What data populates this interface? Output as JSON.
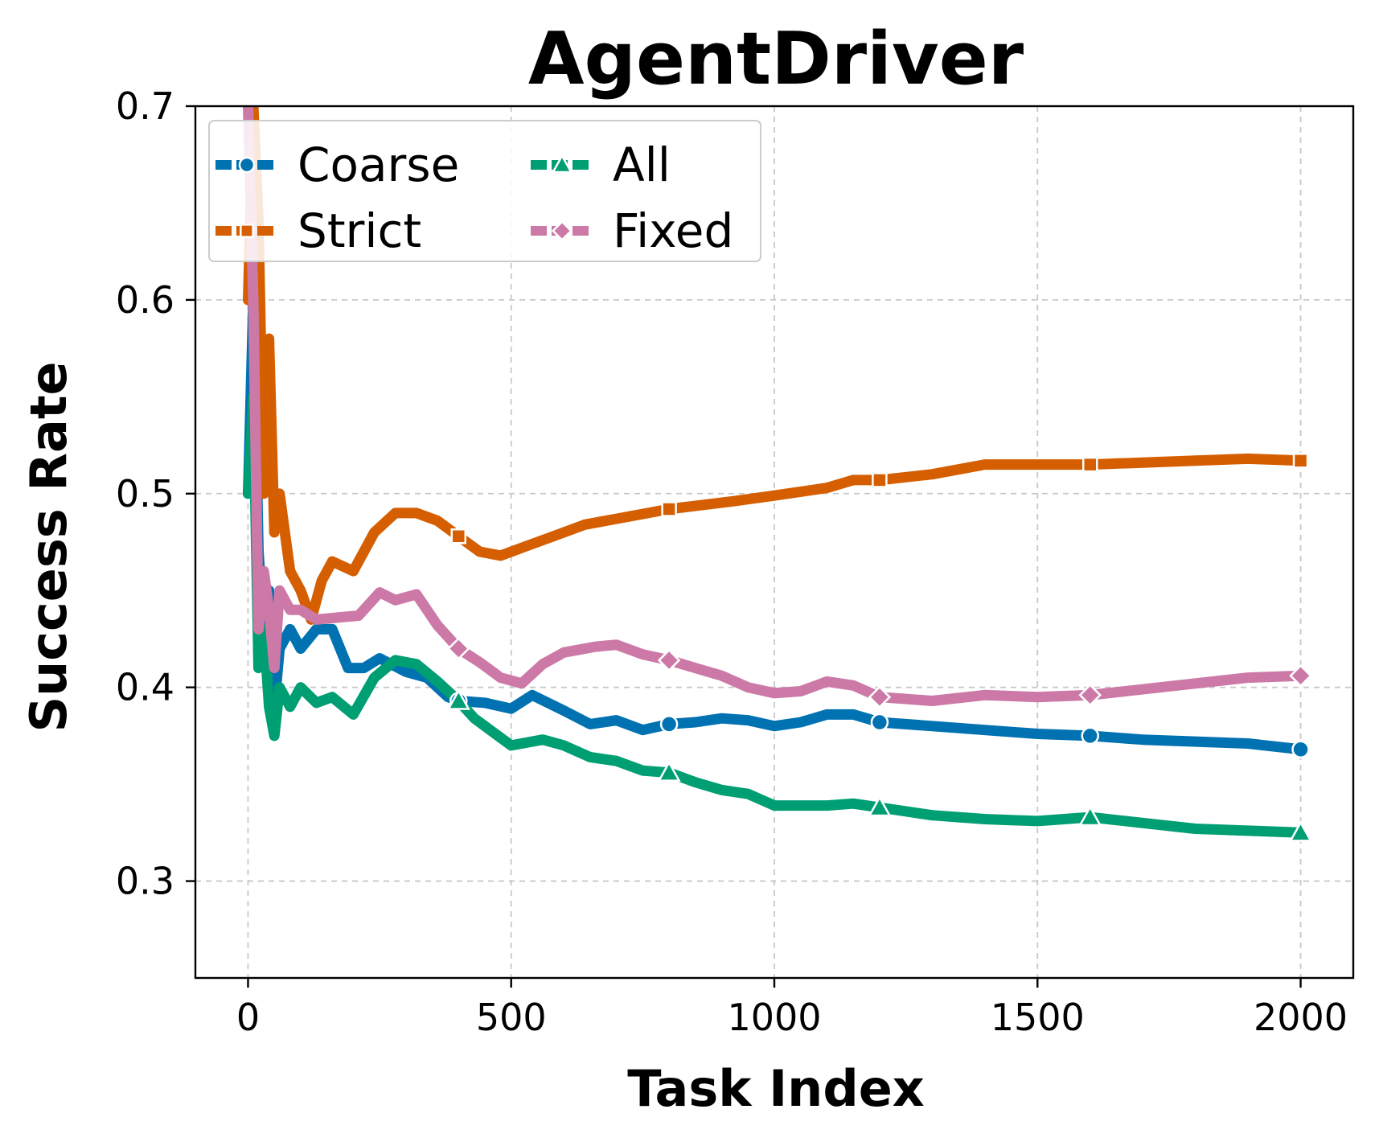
{
  "chart_data": {
    "type": "line",
    "title": "AgentDriver",
    "xlabel": "Task Index",
    "ylabel": "Success Rate",
    "xlim": [
      -100,
      2100
    ],
    "ylim": [
      0.25,
      0.7
    ],
    "xticks": [
      0,
      500,
      1000,
      1500,
      2000
    ],
    "yticks": [
      0.3,
      0.4,
      0.5,
      0.6,
      0.7
    ],
    "xtick_labels": [
      "0",
      "500",
      "1000",
      "1500",
      "2000"
    ],
    "ytick_labels": [
      "0.3",
      "0.4",
      "0.5",
      "0.6",
      "0.7"
    ],
    "grid": true,
    "legend": {
      "position": "top-left",
      "columns": 2
    },
    "marker_every": 400,
    "series": [
      {
        "name": "Coarse",
        "color": "#0072b2",
        "marker": "circle",
        "points": [
          [
            0,
            0.5
          ],
          [
            10,
            0.6
          ],
          [
            20,
            0.47
          ],
          [
            30,
            0.43
          ],
          [
            40,
            0.45
          ],
          [
            50,
            0.39
          ],
          [
            60,
            0.42
          ],
          [
            80,
            0.43
          ],
          [
            100,
            0.42
          ],
          [
            130,
            0.43
          ],
          [
            160,
            0.43
          ],
          [
            190,
            0.41
          ],
          [
            220,
            0.41
          ],
          [
            250,
            0.415
          ],
          [
            300,
            0.408
          ],
          [
            340,
            0.405
          ],
          [
            380,
            0.395
          ],
          [
            400,
            0.393
          ],
          [
            450,
            0.392
          ],
          [
            500,
            0.389
          ],
          [
            540,
            0.396
          ],
          [
            600,
            0.388
          ],
          [
            650,
            0.381
          ],
          [
            700,
            0.383
          ],
          [
            750,
            0.378
          ],
          [
            800,
            0.381
          ],
          [
            850,
            0.382
          ],
          [
            900,
            0.384
          ],
          [
            950,
            0.383
          ],
          [
            1000,
            0.38
          ],
          [
            1050,
            0.382
          ],
          [
            1100,
            0.386
          ],
          [
            1150,
            0.386
          ],
          [
            1200,
            0.382
          ],
          [
            1300,
            0.38
          ],
          [
            1400,
            0.378
          ],
          [
            1500,
            0.376
          ],
          [
            1600,
            0.375
          ],
          [
            1700,
            0.373
          ],
          [
            1800,
            0.372
          ],
          [
            1900,
            0.371
          ],
          [
            2000,
            0.368
          ]
        ]
      },
      {
        "name": "Strict",
        "color": "#d55e00",
        "marker": "square",
        "points": [
          [
            0,
            0.6
          ],
          [
            10,
            0.7
          ],
          [
            20,
            0.64
          ],
          [
            30,
            0.5
          ],
          [
            40,
            0.58
          ],
          [
            50,
            0.48
          ],
          [
            60,
            0.5
          ],
          [
            80,
            0.46
          ],
          [
            100,
            0.45
          ],
          [
            120,
            0.435
          ],
          [
            140,
            0.455
          ],
          [
            160,
            0.465
          ],
          [
            200,
            0.46
          ],
          [
            240,
            0.48
          ],
          [
            280,
            0.49
          ],
          [
            320,
            0.49
          ],
          [
            360,
            0.486
          ],
          [
            400,
            0.478
          ],
          [
            440,
            0.47
          ],
          [
            480,
            0.468
          ],
          [
            520,
            0.472
          ],
          [
            580,
            0.478
          ],
          [
            640,
            0.484
          ],
          [
            700,
            0.487
          ],
          [
            760,
            0.49
          ],
          [
            800,
            0.492
          ],
          [
            860,
            0.494
          ],
          [
            920,
            0.496
          ],
          [
            1000,
            0.499
          ],
          [
            1100,
            0.503
          ],
          [
            1150,
            0.507
          ],
          [
            1200,
            0.507
          ],
          [
            1300,
            0.51
          ],
          [
            1400,
            0.515
          ],
          [
            1500,
            0.515
          ],
          [
            1600,
            0.515
          ],
          [
            1700,
            0.516
          ],
          [
            1800,
            0.517
          ],
          [
            1900,
            0.518
          ],
          [
            2000,
            0.517
          ]
        ]
      },
      {
        "name": "All",
        "color": "#009e73",
        "marker": "triangle",
        "points": [
          [
            0,
            0.5
          ],
          [
            10,
            0.55
          ],
          [
            20,
            0.41
          ],
          [
            30,
            0.43
          ],
          [
            40,
            0.39
          ],
          [
            50,
            0.375
          ],
          [
            60,
            0.4
          ],
          [
            80,
            0.39
          ],
          [
            100,
            0.4
          ],
          [
            130,
            0.392
          ],
          [
            160,
            0.395
          ],
          [
            200,
            0.386
          ],
          [
            240,
            0.405
          ],
          [
            280,
            0.414
          ],
          [
            320,
            0.412
          ],
          [
            360,
            0.403
          ],
          [
            400,
            0.393
          ],
          [
            430,
            0.384
          ],
          [
            470,
            0.376
          ],
          [
            500,
            0.37
          ],
          [
            560,
            0.373
          ],
          [
            600,
            0.37
          ],
          [
            650,
            0.364
          ],
          [
            700,
            0.362
          ],
          [
            750,
            0.357
          ],
          [
            800,
            0.356
          ],
          [
            850,
            0.351
          ],
          [
            900,
            0.347
          ],
          [
            950,
            0.345
          ],
          [
            1000,
            0.339
          ],
          [
            1100,
            0.339
          ],
          [
            1150,
            0.34
          ],
          [
            1200,
            0.338
          ],
          [
            1300,
            0.334
          ],
          [
            1400,
            0.332
          ],
          [
            1500,
            0.331
          ],
          [
            1600,
            0.333
          ],
          [
            1700,
            0.33
          ],
          [
            1800,
            0.327
          ],
          [
            1900,
            0.326
          ],
          [
            2000,
            0.325
          ]
        ]
      },
      {
        "name": "Fixed",
        "color": "#cc79a7",
        "marker": "diamond",
        "points": [
          [
            0,
            0.7
          ],
          [
            10,
            0.6
          ],
          [
            20,
            0.43
          ],
          [
            30,
            0.46
          ],
          [
            40,
            0.44
          ],
          [
            50,
            0.41
          ],
          [
            60,
            0.45
          ],
          [
            80,
            0.44
          ],
          [
            100,
            0.44
          ],
          [
            130,
            0.435
          ],
          [
            170,
            0.436
          ],
          [
            210,
            0.437
          ],
          [
            250,
            0.449
          ],
          [
            280,
            0.445
          ],
          [
            320,
            0.448
          ],
          [
            360,
            0.432
          ],
          [
            400,
            0.42
          ],
          [
            440,
            0.413
          ],
          [
            480,
            0.405
          ],
          [
            520,
            0.402
          ],
          [
            560,
            0.412
          ],
          [
            600,
            0.418
          ],
          [
            660,
            0.421
          ],
          [
            700,
            0.422
          ],
          [
            750,
            0.417
          ],
          [
            800,
            0.414
          ],
          [
            850,
            0.41
          ],
          [
            900,
            0.406
          ],
          [
            950,
            0.4
          ],
          [
            1000,
            0.397
          ],
          [
            1050,
            0.398
          ],
          [
            1100,
            0.403
          ],
          [
            1150,
            0.401
          ],
          [
            1200,
            0.395
          ],
          [
            1300,
            0.393
          ],
          [
            1400,
            0.396
          ],
          [
            1500,
            0.395
          ],
          [
            1600,
            0.396
          ],
          [
            1700,
            0.399
          ],
          [
            1800,
            0.402
          ],
          [
            1900,
            0.405
          ],
          [
            2000,
            0.406
          ]
        ]
      }
    ]
  }
}
